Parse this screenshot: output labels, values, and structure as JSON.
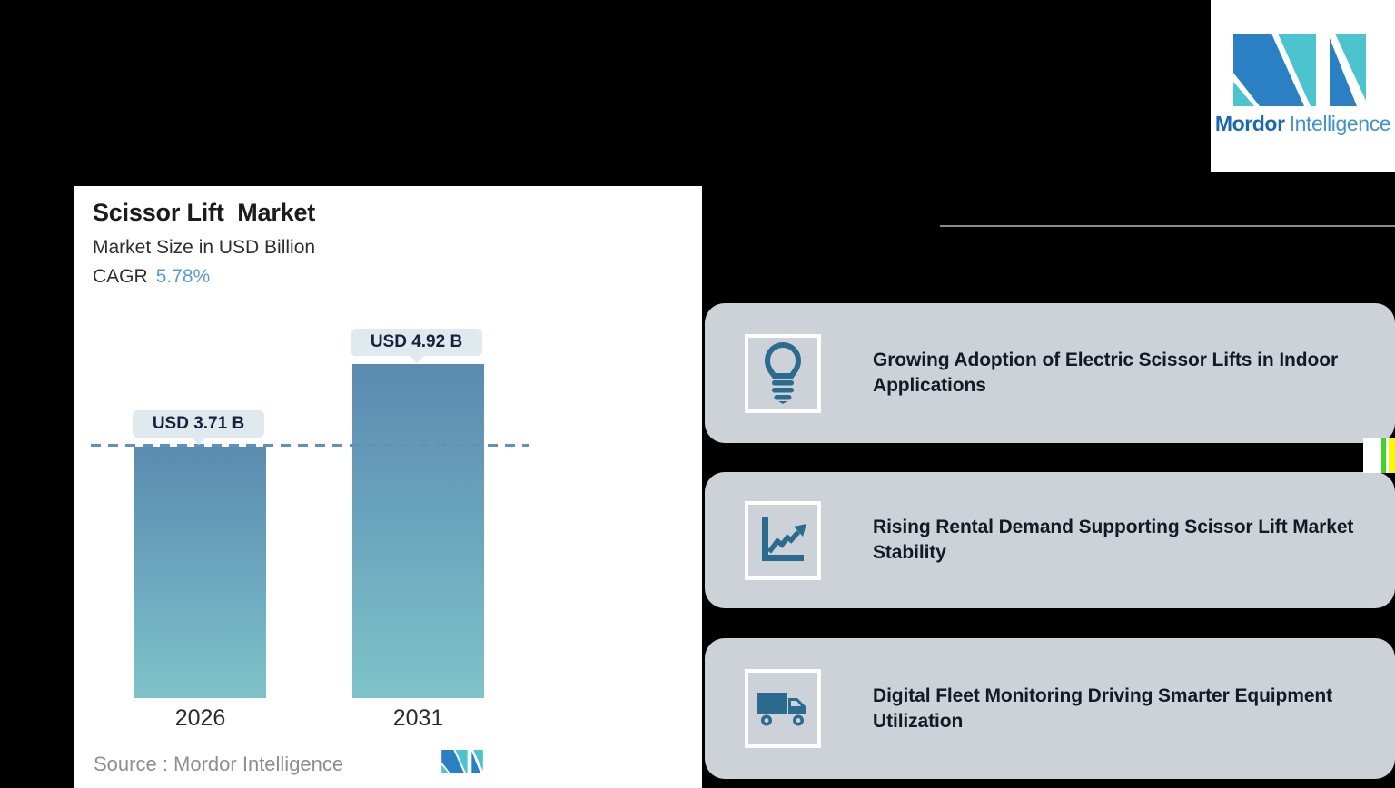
{
  "brand": {
    "name_bold": "Mordor",
    "name_light": "Intelligence",
    "logo_teal": "#4cc4cf",
    "logo_blue": "#2b7fc3"
  },
  "panel": {
    "title": "Scissor Lift  Market",
    "subtitle": "Market Size in USD Billion",
    "cagr_label": "CAGR",
    "cagr_value": "5.78%",
    "source_text": "Source :  Mordor Intelligence"
  },
  "chart_data": {
    "type": "bar",
    "title": "Scissor Lift Market",
    "subtitle": "Market Size in USD Billion",
    "categories": [
      "2026",
      "2031"
    ],
    "values": [
      3.71,
      4.92
    ],
    "value_labels": [
      "USD 3.71 B",
      "USD 4.92 B"
    ],
    "cagr_percent": 5.78,
    "ylim": [
      0,
      4.92
    ],
    "grid": false,
    "legend": false,
    "bar_color_top": "#5a8bb0",
    "bar_color_bottom": "#7fc3c9",
    "reference_line": {
      "y": 3.71,
      "style": "dashed",
      "color": "#6191bb"
    }
  },
  "trends": {
    "cards": [
      {
        "icon": "lightbulb-icon",
        "text": "Growing Adoption of Electric Scissor Lifts in Indoor Applications"
      },
      {
        "icon": "growth-chart-icon",
        "text": "Rising Rental Demand Supporting Scissor Lift Market Stability"
      },
      {
        "icon": "truck-icon",
        "text": "Digital Fleet Monitoring Driving Smarter Equipment Utilization"
      }
    ],
    "card_bg": "#cdd2d9",
    "icon_color": "#2a6b8f"
  }
}
